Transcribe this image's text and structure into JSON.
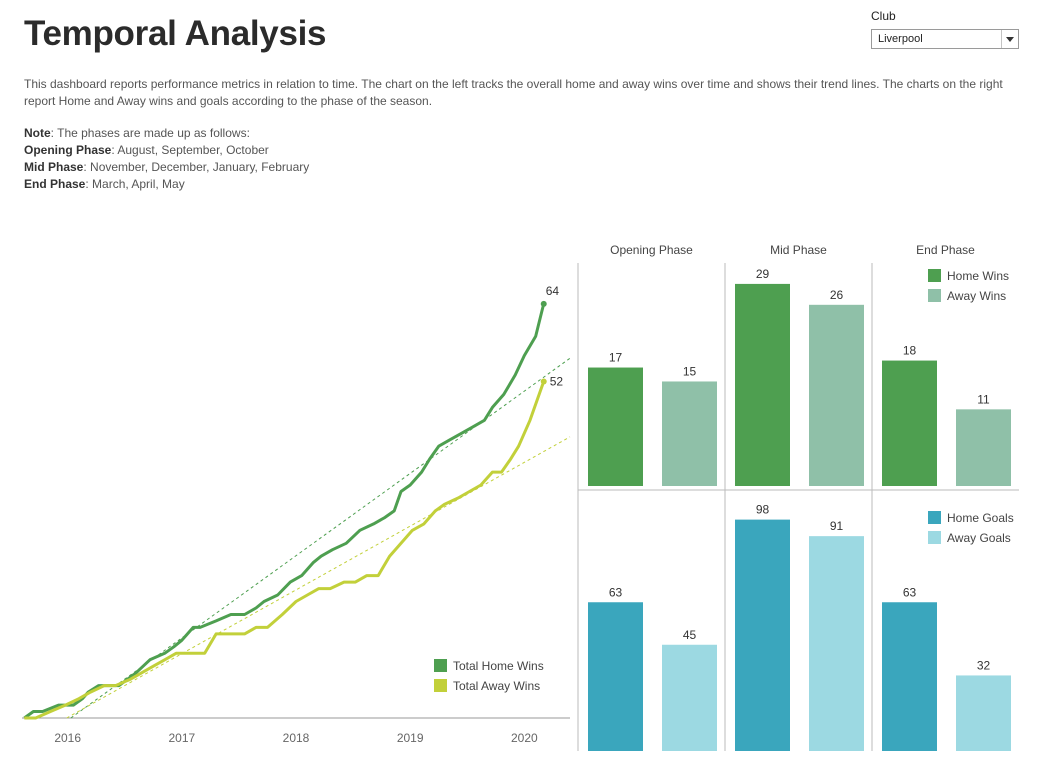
{
  "header": {
    "title": "Temporal Analysis"
  },
  "filter": {
    "label": "Club",
    "selected": "Liverpool"
  },
  "description": "This dashboard reports performance metrics in relation to time. The chart on the left tracks the overall home and away wins over time and shows their trend lines. The charts on the right report Home and Away wins and goals according to the phase of the season.",
  "notes": {
    "note_label": "Note",
    "note_text": ": The phases are made up as follows:",
    "opening_label": "Opening Phase",
    "opening_text": ": August, September, October",
    "mid_label": "Mid Phase",
    "mid_text": ": November, December, January, February",
    "end_label": "End Phase",
    "end_text": ": March, April, May"
  },
  "colors": {
    "home_wins": "#4e9f50",
    "away_wins": "#c2d03a",
    "home_wins_bar": "#4e9f50",
    "away_wins_bar": "#8fc0a8",
    "home_goals": "#3aa6bd",
    "away_goals": "#9cd9e2"
  },
  "chart_data": [
    {
      "type": "line",
      "x_ticks": [
        "2016",
        "2017",
        "2018",
        "2019",
        "2020"
      ],
      "xlim": [
        2015.6,
        2020.4
      ],
      "ylim": [
        0,
        70
      ],
      "grid": false,
      "legend_position": "bottom-right",
      "end_labels": [
        "64",
        "52"
      ],
      "series": [
        {
          "name": "Total Home Wins",
          "color": "#4e9f50",
          "x": [
            2015.62,
            2015.7,
            2015.78,
            2015.92,
            2016.05,
            2016.13,
            2016.18,
            2016.27,
            2016.37,
            2016.45,
            2016.6,
            2016.72,
            2016.85,
            2016.93,
            2017.0,
            2017.1,
            2017.16,
            2017.3,
            2017.43,
            2017.55,
            2017.65,
            2017.72,
            2017.84,
            2017.95,
            2018.05,
            2018.15,
            2018.22,
            2018.32,
            2018.44,
            2018.56,
            2018.68,
            2018.78,
            2018.86,
            2018.92,
            2019.0,
            2019.1,
            2019.17,
            2019.25,
            2019.35,
            2019.45,
            2019.55,
            2019.65,
            2019.72,
            2019.82,
            2019.92,
            2020.0,
            2020.1,
            2020.17
          ],
          "y": [
            0,
            1,
            1,
            2,
            2,
            3,
            4,
            5,
            5,
            5,
            7,
            9,
            10,
            11,
            12,
            14,
            14,
            15,
            16,
            16,
            17,
            18,
            19,
            21,
            22,
            24,
            25,
            26,
            27,
            29,
            30,
            31,
            32,
            35,
            36,
            38,
            40,
            42,
            43,
            44,
            45,
            46,
            48,
            50,
            53,
            56,
            59,
            64
          ]
        },
        {
          "name": "Total Away Wins",
          "color": "#c2d03a",
          "x": [
            2015.62,
            2015.72,
            2015.85,
            2015.98,
            2016.1,
            2016.2,
            2016.32,
            2016.42,
            2016.55,
            2016.65,
            2016.75,
            2016.85,
            2016.95,
            2017.05,
            2017.2,
            2017.3,
            2017.45,
            2017.55,
            2017.65,
            2017.75,
            2017.88,
            2018.0,
            2018.1,
            2018.2,
            2018.3,
            2018.42,
            2018.52,
            2018.62,
            2018.72,
            2018.82,
            2018.92,
            2019.02,
            2019.12,
            2019.22,
            2019.3,
            2019.42,
            2019.52,
            2019.62,
            2019.72,
            2019.8,
            2019.88,
            2019.95,
            2020.05,
            2020.17
          ],
          "y": [
            0,
            0,
            1,
            2,
            3,
            4,
            5,
            5,
            6,
            7,
            8,
            9,
            10,
            10,
            10,
            13,
            13,
            13,
            14,
            14,
            16,
            18,
            19,
            20,
            20,
            21,
            21,
            22,
            22,
            25,
            27,
            29,
            30,
            32,
            33,
            34,
            35,
            36,
            38,
            38,
            40,
            42,
            46,
            52
          ]
        }
      ]
    },
    {
      "type": "bar",
      "panel": "wins",
      "categories": [
        "Opening Phase",
        "Mid Phase",
        "End Phase"
      ],
      "legend_position": "top-right",
      "ylim": [
        0,
        32
      ],
      "series": [
        {
          "name": "Home Wins",
          "color": "#4e9f50",
          "values": [
            17,
            29,
            18
          ]
        },
        {
          "name": "Away Wins",
          "color": "#8fc0a8",
          "values": [
            15,
            26,
            11
          ]
        }
      ]
    },
    {
      "type": "bar",
      "panel": "goals",
      "categories": [
        "Opening Phase",
        "Mid Phase",
        "End Phase"
      ],
      "legend_position": "top-right",
      "ylim": [
        0,
        108
      ],
      "series": [
        {
          "name": "Home Goals",
          "color": "#3aa6bd",
          "values": [
            63,
            98,
            63
          ]
        },
        {
          "name": "Away Goals",
          "color": "#9cd9e2",
          "values": [
            45,
            91,
            32
          ]
        }
      ]
    }
  ]
}
